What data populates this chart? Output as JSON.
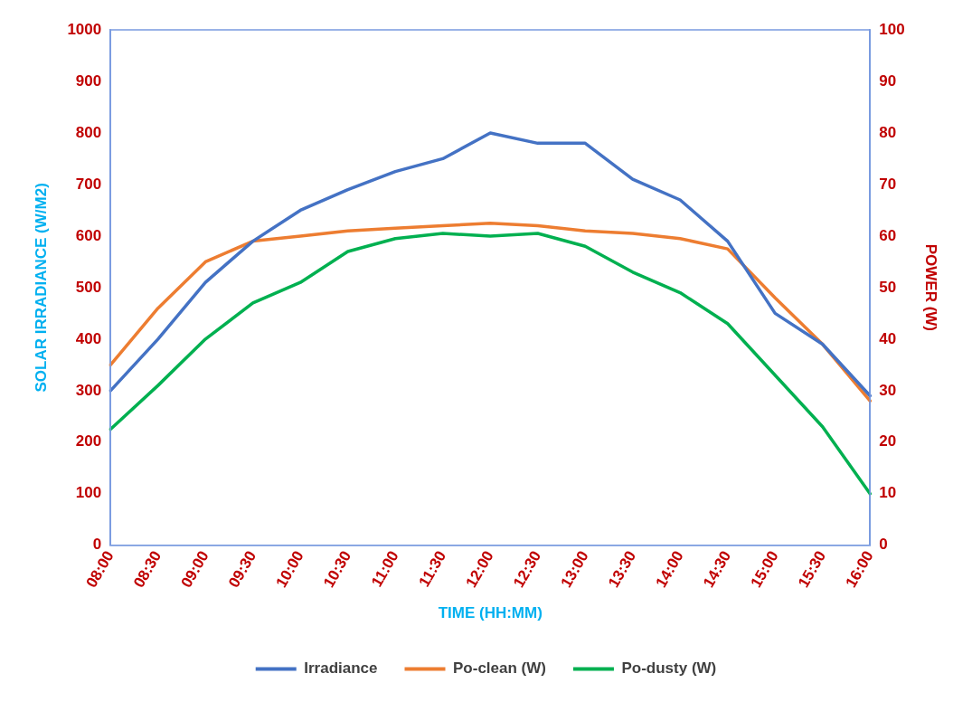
{
  "chart_data": {
    "type": "line",
    "categories": [
      "08:00",
      "08:30",
      "09:00",
      "09:30",
      "10:00",
      "10:30",
      "11:00",
      "11:30",
      "12:00",
      "12:30",
      "13:00",
      "13:30",
      "14:00",
      "14:30",
      "15:00",
      "15:30",
      "16:00"
    ],
    "series": [
      {
        "name": "Irradiance",
        "color": "#4472c4",
        "values": [
          300,
          400,
          510,
          590,
          650,
          690,
          725,
          750,
          800,
          780,
          780,
          710,
          670,
          590,
          450,
          390,
          290
        ]
      },
      {
        "name": "Po-clean (W)",
        "color": "#ed7d31",
        "axis": "y2",
        "values": [
          35,
          46,
          55,
          59,
          60,
          61,
          61.5,
          62,
          62.5,
          62,
          61,
          60.5,
          59.5,
          57.5,
          48,
          39,
          28
        ]
      },
      {
        "name": "Po-dusty (W)",
        "color": "#00b050",
        "axis": "y2",
        "values": [
          22.5,
          31,
          40,
          47,
          51,
          57,
          59.5,
          60.5,
          60,
          60.5,
          58,
          53,
          49,
          43,
          33,
          23,
          10
        ]
      }
    ],
    "xlabel": "TIME (HH:MM)",
    "ylabel": "SOLAR IRRADIANCE (W/M2)",
    "y2label": "POWER (W)",
    "ylim": [
      0,
      1000
    ],
    "yticks": [
      0,
      100,
      200,
      300,
      400,
      500,
      600,
      700,
      800,
      900,
      1000
    ],
    "y2lim": [
      0,
      100
    ],
    "y2ticks": [
      0,
      10,
      20,
      30,
      40,
      50,
      60,
      70,
      80,
      90,
      100
    ],
    "grid": false,
    "legend": "bottom",
    "marker": "none",
    "line_style": "solid"
  }
}
